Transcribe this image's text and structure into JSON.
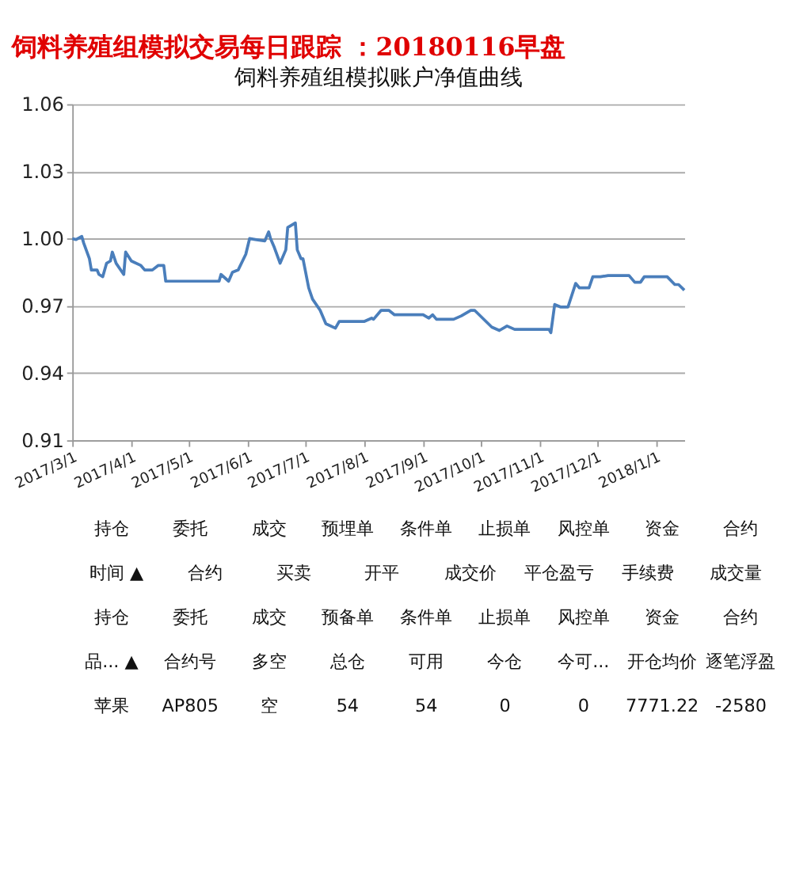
{
  "chart_data": {
    "type": "line",
    "title": "饲料养殖组模拟交易每日跟踪 ：20180116早盘",
    "subtitle": "饲料养殖组模拟账户净值曲线",
    "x": [
      "2017-03-01",
      "2017-03-03",
      "2017-03-06",
      "2017-03-07",
      "2017-03-10",
      "2017-03-11",
      "2017-03-14",
      "2017-03-15",
      "2017-03-17",
      "2017-03-19",
      "2017-03-21",
      "2017-03-22",
      "2017-03-24",
      "2017-03-28",
      "2017-03-29",
      "2017-04-01",
      "2017-04-06",
      "2017-04-08",
      "2017-04-12",
      "2017-04-15",
      "2017-04-18",
      "2017-04-19",
      "2017-04-25",
      "2017-05-17",
      "2017-05-18",
      "2017-05-22",
      "2017-05-24",
      "2017-05-27",
      "2017-05-31",
      "2017-06-02",
      "2017-06-05",
      "2017-06-10",
      "2017-06-12",
      "2017-06-13",
      "2017-06-15",
      "2017-06-18",
      "2017-06-21",
      "2017-06-22",
      "2017-06-26",
      "2017-06-27",
      "2017-06-29",
      "2017-06-30",
      "2017-07-03",
      "2017-07-05",
      "2017-07-09",
      "2017-07-12",
      "2017-07-17",
      "2017-07-19",
      "2017-07-22",
      "2017-08-01",
      "2017-08-05",
      "2017-08-06",
      "2017-08-10",
      "2017-08-14",
      "2017-08-17",
      "2017-09-01",
      "2017-09-04",
      "2017-09-06",
      "2017-09-08",
      "2017-09-17",
      "2017-09-21",
      "2017-09-26",
      "2017-09-28",
      "2017-10-07",
      "2017-10-11",
      "2017-10-15",
      "2017-10-19",
      "2017-11-06",
      "2017-11-07",
      "2017-11-09",
      "2017-11-12",
      "2017-11-16",
      "2017-11-20",
      "2017-11-22",
      "2017-11-27",
      "2017-11-29",
      "2017-12-03",
      "2017-12-07",
      "2017-12-18",
      "2017-12-21",
      "2017-12-24",
      "2017-12-26",
      "2018-01-07",
      "2018-01-11",
      "2018-01-13",
      "2018-01-16"
    ],
    "series": [
      {
        "color": "#4a7ebb",
        "values": [
          1.0,
          0.9996,
          1.001,
          0.998,
          0.991,
          0.986,
          0.986,
          0.984,
          0.983,
          0.989,
          0.99,
          0.994,
          0.989,
          0.984,
          0.994,
          0.99,
          0.988,
          0.986,
          0.986,
          0.988,
          0.988,
          0.981,
          0.981,
          0.981,
          0.984,
          0.981,
          0.985,
          0.986,
          0.993,
          1.0,
          0.9996,
          0.999,
          1.003,
          1.0,
          0.996,
          0.989,
          0.995,
          1.005,
          1.007,
          0.995,
          0.991,
          0.991,
          0.978,
          0.973,
          0.968,
          0.962,
          0.96,
          0.963,
          0.963,
          0.963,
          0.9645,
          0.964,
          0.968,
          0.968,
          0.966,
          0.966,
          0.9645,
          0.966,
          0.964,
          0.964,
          0.9655,
          0.968,
          0.968,
          0.9605,
          0.959,
          0.961,
          0.9595,
          0.9595,
          0.958,
          0.9706,
          0.9695,
          0.9695,
          0.98,
          0.978,
          0.978,
          0.983,
          0.983,
          0.9835,
          0.9835,
          0.9805,
          0.9805,
          0.983,
          0.983,
          0.9795,
          0.9795,
          0.977
        ]
      }
    ],
    "xlim": [
      "2017-03-01",
      "2018-01-16"
    ],
    "xticks": [
      {
        "value": "2017-03-01",
        "label": "2017/3/1"
      },
      {
        "value": "2017-04-01",
        "label": "2017/4/1"
      },
      {
        "value": "2017-05-01",
        "label": "2017/5/1"
      },
      {
        "value": "2017-06-01",
        "label": "2017/6/1"
      },
      {
        "value": "2017-07-01",
        "label": "2017/7/1"
      },
      {
        "value": "2017-08-01",
        "label": "2017/8/1"
      },
      {
        "value": "2017-09-01",
        "label": "2017/9/1"
      },
      {
        "value": "2017-10-01",
        "label": "2017/10/1"
      },
      {
        "value": "2017-11-01",
        "label": "2017/11/1"
      },
      {
        "value": "2017-12-01",
        "label": "2017/12/1"
      },
      {
        "value": "2018-01-01",
        "label": "2018/1/1"
      }
    ],
    "ylim": [
      0.91,
      1.06
    ],
    "yticks": [
      0.91,
      0.94,
      0.97,
      {
        "value": 1.0,
        "label": "1.00"
      },
      1.03,
      1.06
    ],
    "grid": "y",
    "legend": false,
    "marker": "none",
    "line_style": "solid",
    "annotations": [
      "持仓",
      "委托",
      "成交",
      "预埋单",
      "条件单",
      "止损单",
      "风控单",
      "资金",
      "合约",
      "时间 ▲",
      "合约",
      "买卖",
      "开平",
      "成交价",
      "平仓盈亏",
      "手续费",
      "成交量",
      "持仓",
      "委托",
      "成交",
      "预备单",
      "条件单",
      "止损单",
      "风控单",
      "资金",
      "合约",
      "品... ▲",
      "合约号",
      "多空",
      "总仓",
      "可用",
      "今仓",
      "今可...",
      "开仓均价",
      "逐笔浮盈",
      "苹果",
      "AP805",
      "空",
      "54",
      "54",
      "0",
      "0",
      "7771.22",
      "-2580"
    ]
  }
}
